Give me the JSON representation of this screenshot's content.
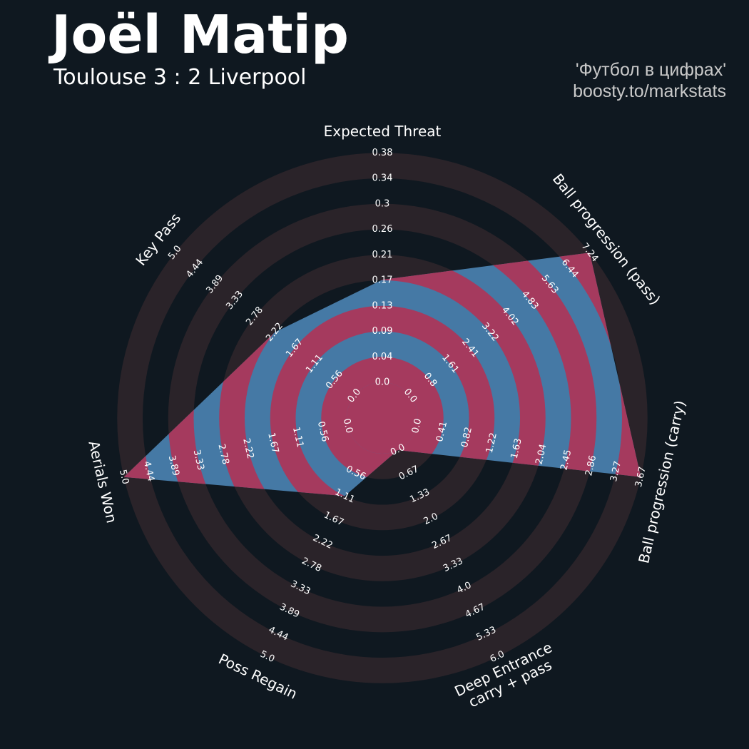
{
  "header": {
    "title": "Joël Matip",
    "subtitle": "Toulouse 3 : 2 Liverpool"
  },
  "credit": {
    "line1": "'Футбол в цифрах'",
    "line2": "boosty.to/markstats"
  },
  "colors": {
    "background": "#0f1820",
    "ring_outer": "#2a2329",
    "ring_inner": "#a53a5e",
    "player_fill": "#4579a5",
    "player_ring": "#a53a5e"
  },
  "chart_data": {
    "type": "radar",
    "title": "Joël Matip",
    "parameters": [
      {
        "label": [
          "Expected Threat"
        ],
        "ticks": [
          "0.0",
          "0.04",
          "0.09",
          "0.13",
          "0.17",
          "0.21",
          "0.26",
          "0.3",
          "0.34",
          "0.38"
        ],
        "max": 0.38,
        "value": 0.17
      },
      {
        "label": [
          "Ball progression (pass)"
        ],
        "ticks": [
          "0.0",
          "0.8",
          "1.61",
          "2.41",
          "3.22",
          "4.02",
          "4.83",
          "5.63",
          "6.44",
          "7.24"
        ],
        "max": 7.24,
        "value": 7.24
      },
      {
        "label": [
          "Ball progression (carry)"
        ],
        "ticks": [
          "0.0",
          "0.41",
          "0.82",
          "1.22",
          "1.63",
          "2.04",
          "2.45",
          "2.86",
          "3.27",
          "3.67"
        ],
        "max": 3.67,
        "value": 3.67
      },
      {
        "label": [
          "Deep Entrance",
          "carry + pass"
        ],
        "ticks": [
          "0.0",
          "0.67",
          "1.33",
          "2.0",
          "2.67",
          "3.33",
          "4.0",
          "4.67",
          "5.33",
          "6.0"
        ],
        "max": 6.0,
        "value": 0
      },
      {
        "label": [
          "Poss Regain"
        ],
        "ticks": [
          "0.56",
          "1.11",
          "1.67",
          "2.22",
          "2.78",
          "3.33",
          "3.89",
          "4.44",
          "5.0"
        ],
        "ticks_start_index": 1,
        "max": 5.0,
        "value": 1.11
      },
      {
        "label": [
          "Aerials Won"
        ],
        "ticks": [
          "0.0",
          "0.56",
          "1.11",
          "1.67",
          "2.22",
          "2.78",
          "3.33",
          "3.89",
          "4.44",
          "5.0"
        ],
        "max": 5.0,
        "value": 5.0
      },
      {
        "label": [
          "Key Pass"
        ],
        "ticks": [
          "0.0",
          "0.56",
          "1.11",
          "1.67",
          "2.22",
          "2.78",
          "3.33",
          "3.89",
          "4.44",
          "5.0"
        ],
        "max": 5.0,
        "value": 2.22
      }
    ]
  }
}
